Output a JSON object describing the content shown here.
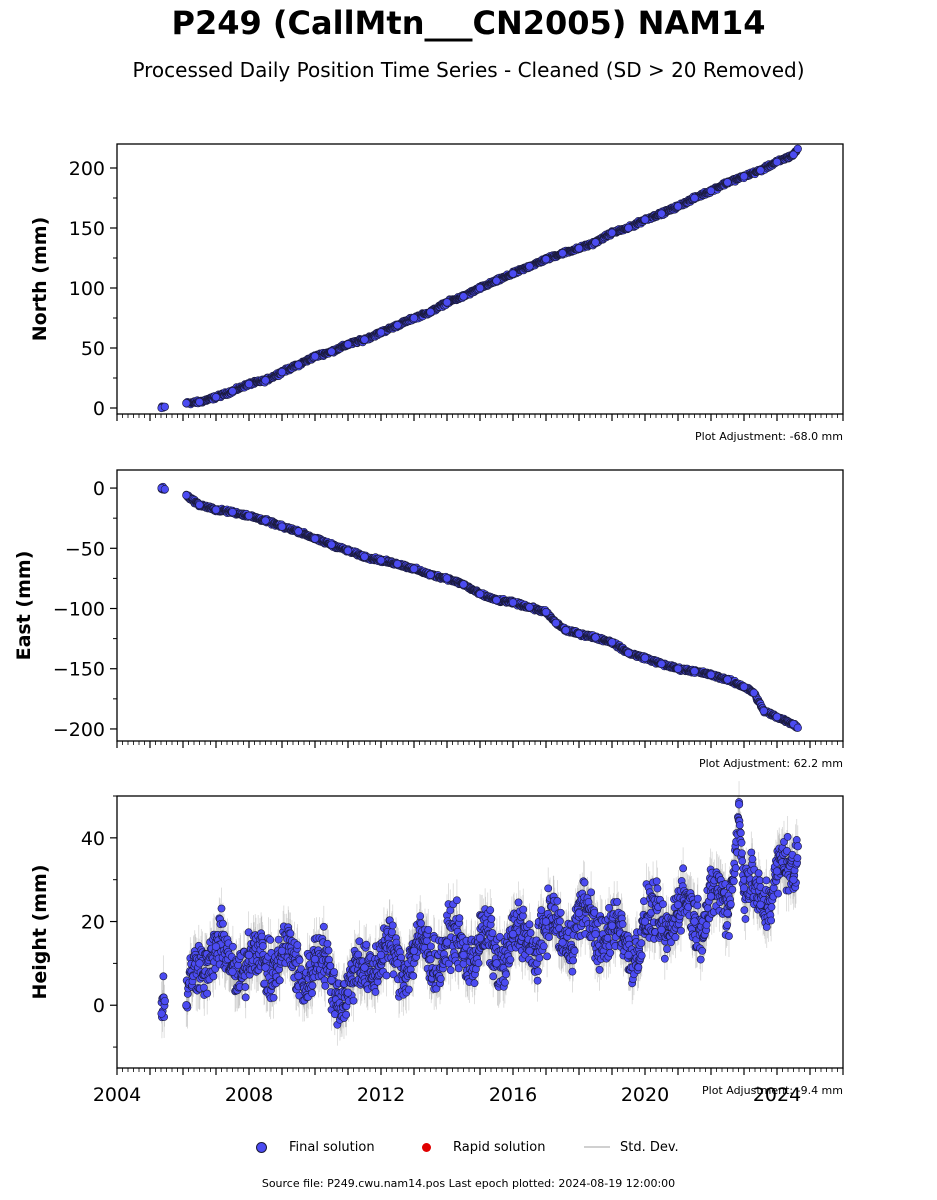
{
  "title": "P249 (CallMtn___CN2005) NAM14",
  "subtitle": "Processed Daily Position Time Series - Cleaned (SD > 20 Removed)",
  "source_text": "Source file: P249.cwu.nam14.pos  Last epoch plotted: 2024-08-19 12:00:00",
  "legend": {
    "final_label": "Final solution",
    "rapid_label": "Rapid solution",
    "std_label": "Std. Dev."
  },
  "colors": {
    "final": "#4b4bf2",
    "final_edge": "#1a1a3a",
    "rapid": "#e00000",
    "std": "#8c8c8c",
    "std_legend": "#d0d0d0"
  },
  "chart_data": [
    {
      "type": "scatter",
      "ylabel": "North (mm)",
      "adjustment": "Plot Adjustment: -68.0 mm",
      "xlim": [
        2004,
        2026
      ],
      "ylim": [
        -5,
        220
      ],
      "yticks": [
        0,
        50,
        100,
        150,
        200
      ],
      "tick_labels": [
        "0",
        "50",
        "100",
        "150",
        "200"
      ],
      "series": [
        {
          "x": [
            2005.35,
            2005.45,
            2006.1,
            2006.5,
            2007.0,
            2007.5,
            2008.0,
            2008.5,
            2009.0,
            2009.5,
            2010.0,
            2010.5,
            2011.0,
            2011.5,
            2012.0,
            2012.5,
            2013.0,
            2013.5,
            2014.0,
            2014.5,
            2015.0,
            2015.5,
            2016.0,
            2016.5,
            2017.0,
            2017.5,
            2018.0,
            2018.5,
            2019.0,
            2019.5,
            2020.0,
            2020.5,
            2021.0,
            2021.5,
            2022.0,
            2022.5,
            2023.0,
            2023.5,
            2024.0,
            2024.5,
            2024.63
          ],
          "values": [
            0,
            1,
            4,
            5,
            9,
            14,
            20,
            23,
            30,
            36,
            43,
            47,
            53,
            57,
            63,
            69,
            75,
            80,
            88,
            93,
            100,
            106,
            112,
            118,
            124,
            129,
            133,
            138,
            146,
            150,
            157,
            162,
            168,
            175,
            181,
            188,
            193,
            198,
            205,
            211,
            216
          ]
        }
      ]
    },
    {
      "type": "scatter",
      "ylabel": "East (mm)",
      "adjustment": "Plot Adjustment: 62.2 mm",
      "xlim": [
        2004,
        2026
      ],
      "ylim": [
        -210,
        15
      ],
      "yticks": [
        0,
        -50,
        -100,
        -150,
        -200
      ],
      "tick_labels": [
        "0",
        "−50",
        "−100",
        "−150",
        "−200"
      ],
      "series": [
        {
          "x": [
            2005.35,
            2005.45,
            2006.1,
            2006.5,
            2007.0,
            2007.5,
            2008.0,
            2008.5,
            2009.0,
            2009.5,
            2010.0,
            2010.5,
            2011.0,
            2011.5,
            2012.0,
            2012.5,
            2013.0,
            2013.5,
            2014.0,
            2014.5,
            2015.0,
            2015.5,
            2016.0,
            2016.5,
            2017.0,
            2017.3,
            2017.6,
            2018.0,
            2018.5,
            2019.0,
            2019.5,
            2020.0,
            2020.5,
            2021.0,
            2021.5,
            2022.0,
            2022.5,
            2023.0,
            2023.3,
            2023.6,
            2024.0,
            2024.5,
            2024.63
          ],
          "values": [
            0,
            -1,
            -6,
            -14,
            -18,
            -20,
            -23,
            -27,
            -32,
            -36,
            -42,
            -47,
            -52,
            -57,
            -60,
            -63,
            -67,
            -72,
            -75,
            -80,
            -88,
            -93,
            -95,
            -99,
            -103,
            -112,
            -118,
            -121,
            -124,
            -128,
            -137,
            -141,
            -146,
            -150,
            -152,
            -155,
            -159,
            -165,
            -170,
            -185,
            -190,
            -196,
            -199
          ]
        }
      ]
    },
    {
      "type": "scatter",
      "ylabel": "Height (mm)",
      "adjustment": "Plot Adjustment: -9.4 mm",
      "xlim": [
        2004,
        2026
      ],
      "ylim": [
        -15,
        50
      ],
      "yticks": [
        0,
        20,
        40
      ],
      "tick_labels": [
        "0",
        "20",
        "40"
      ],
      "xticks": [
        2004,
        2008,
        2012,
        2016,
        2020,
        2024
      ],
      "xtick_labels": [
        "2004",
        "2008",
        "2012",
        "2016",
        "2020",
        "2024"
      ],
      "series": [
        {
          "x": [
            2005.35,
            2005.45,
            2006.1,
            2006.5,
            2007.0,
            2007.5,
            2008.0,
            2008.5,
            2009.0,
            2009.5,
            2010.0,
            2010.5,
            2011.0,
            2011.5,
            2012.0,
            2012.5,
            2013.0,
            2013.5,
            2014.0,
            2014.5,
            2015.0,
            2015.5,
            2016.0,
            2016.5,
            2017.0,
            2017.5,
            2018.0,
            2018.5,
            2019.0,
            2019.5,
            2020.0,
            2020.5,
            2021.0,
            2021.5,
            2022.0,
            2022.5,
            2022.85,
            2023.0,
            2023.5,
            2024.0,
            2024.5,
            2024.63
          ],
          "values": [
            -2,
            1,
            0,
            10,
            14,
            8,
            12,
            9,
            13,
            7,
            11,
            6,
            3,
            9,
            12,
            10,
            13,
            11,
            15,
            12,
            16,
            10,
            17,
            13,
            20,
            15,
            22,
            17,
            19,
            12,
            20,
            18,
            24,
            20,
            26,
            22,
            48,
            28,
            24,
            32,
            30,
            38
          ]
        }
      ]
    }
  ]
}
